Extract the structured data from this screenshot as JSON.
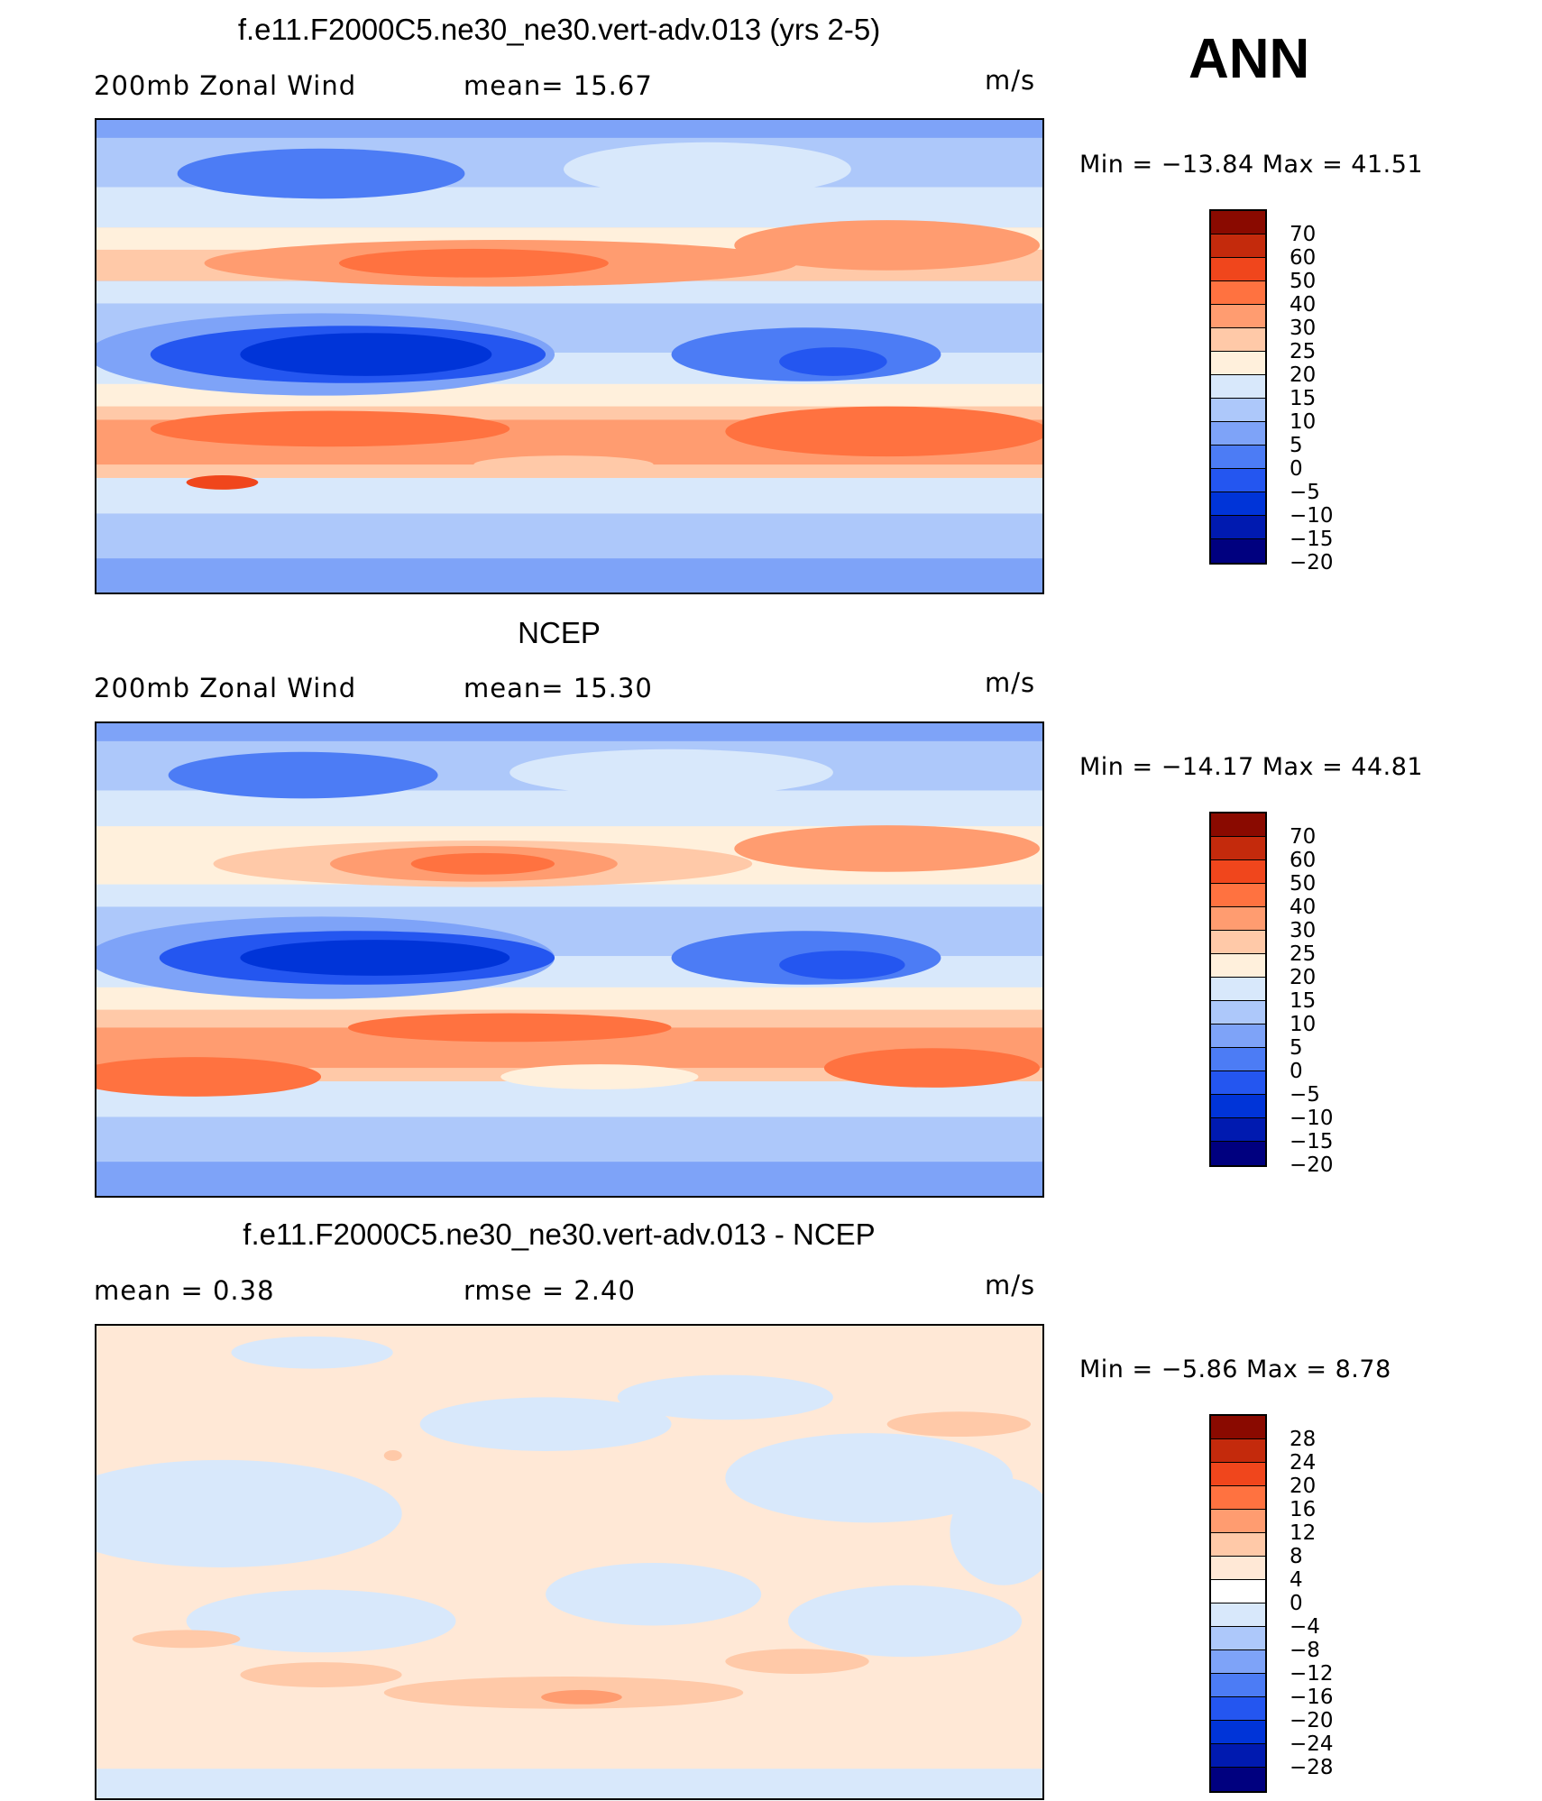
{
  "season": "ANN",
  "colors": {
    "absolute": [
      "#00007f",
      "#001ab0",
      "#0034d8",
      "#2456f0",
      "#4c7cf5",
      "#7ea3f8",
      "#adc8fa",
      "#d8e8fb",
      "#fff0dc",
      "#ffc9a8",
      "#ff9c70",
      "#ff7240",
      "#f0461c",
      "#c42a0c",
      "#8a0a00"
    ],
    "difference": [
      "#00007f",
      "#001ab0",
      "#0034d8",
      "#2456f0",
      "#4c7cf5",
      "#7ea3f8",
      "#adc8fa",
      "#d8e8fb",
      "#ffe8d6",
      "#ffc9a8",
      "#ff9c70",
      "#ff7240",
      "#f0461c",
      "#c42a0c",
      "#8a0a00"
    ]
  },
  "panels": [
    {
      "title": "f.e11.F2000C5.ne30_ne30.vert-adv.013 (yrs 2-5)",
      "left_label": "200mb  Zonal Wind",
      "center_label": "mean=   15.67",
      "units": "m/s",
      "minmax": "Min  =  −13.84  Max  =    41.51",
      "colorbar_labels": [
        "70",
        "60",
        "50",
        "40",
        "30",
        "25",
        "20",
        "15",
        "10",
        "5",
        "0",
        "−5",
        "−10",
        "−15",
        "−20"
      ]
    },
    {
      "title": "NCEP",
      "left_label": "200mb  Zonal Wind",
      "center_label": "mean=   15.30",
      "units": "m/s",
      "minmax": "Min  =  −14.17  Max  =    44.81",
      "colorbar_labels": [
        "70",
        "60",
        "50",
        "40",
        "30",
        "25",
        "20",
        "15",
        "10",
        "5",
        "0",
        "−5",
        "−10",
        "−15",
        "−20"
      ]
    },
    {
      "title": "f.e11.F2000C5.ne30_ne30.vert-adv.013 - NCEP",
      "left_label": "mean =     0.38",
      "center_label": "rmse  =     2.40",
      "units": "m/s",
      "minmax": "Min  =    −5.86  Max  =     8.78",
      "colorbar_labels": [
        "28",
        "24",
        "20",
        "16",
        "12",
        "8",
        "4",
        "0",
        "−4",
        "−8",
        "−12",
        "−16",
        "−20",
        "−24",
        "−28"
      ]
    }
  ],
  "chart_data": [
    {
      "type": "heatmap",
      "title": "f.e11.F2000C5.ne30_ne30.vert-adv.013 (yrs 2-5)",
      "variable": "200mb Zonal Wind",
      "units": "m/s",
      "mean": 15.67,
      "min": -13.84,
      "max": 41.51,
      "contour_levels": [
        -20,
        -15,
        -10,
        -5,
        0,
        5,
        10,
        15,
        20,
        25,
        30,
        40,
        50,
        60,
        70
      ]
    },
    {
      "type": "heatmap",
      "title": "NCEP",
      "variable": "200mb Zonal Wind",
      "units": "m/s",
      "mean": 15.3,
      "min": -14.17,
      "max": 44.81,
      "contour_levels": [
        -20,
        -15,
        -10,
        -5,
        0,
        5,
        10,
        15,
        20,
        25,
        30,
        40,
        50,
        60,
        70
      ]
    },
    {
      "type": "heatmap",
      "title": "f.e11.F2000C5.ne30_ne30.vert-adv.013 - NCEP",
      "units": "m/s",
      "mean": 0.38,
      "rmse": 2.4,
      "min": -5.86,
      "max": 8.78,
      "contour_levels": [
        -28,
        -24,
        -20,
        -16,
        -12,
        -8,
        -4,
        0,
        4,
        8,
        12,
        16,
        20,
        24,
        28
      ]
    }
  ]
}
